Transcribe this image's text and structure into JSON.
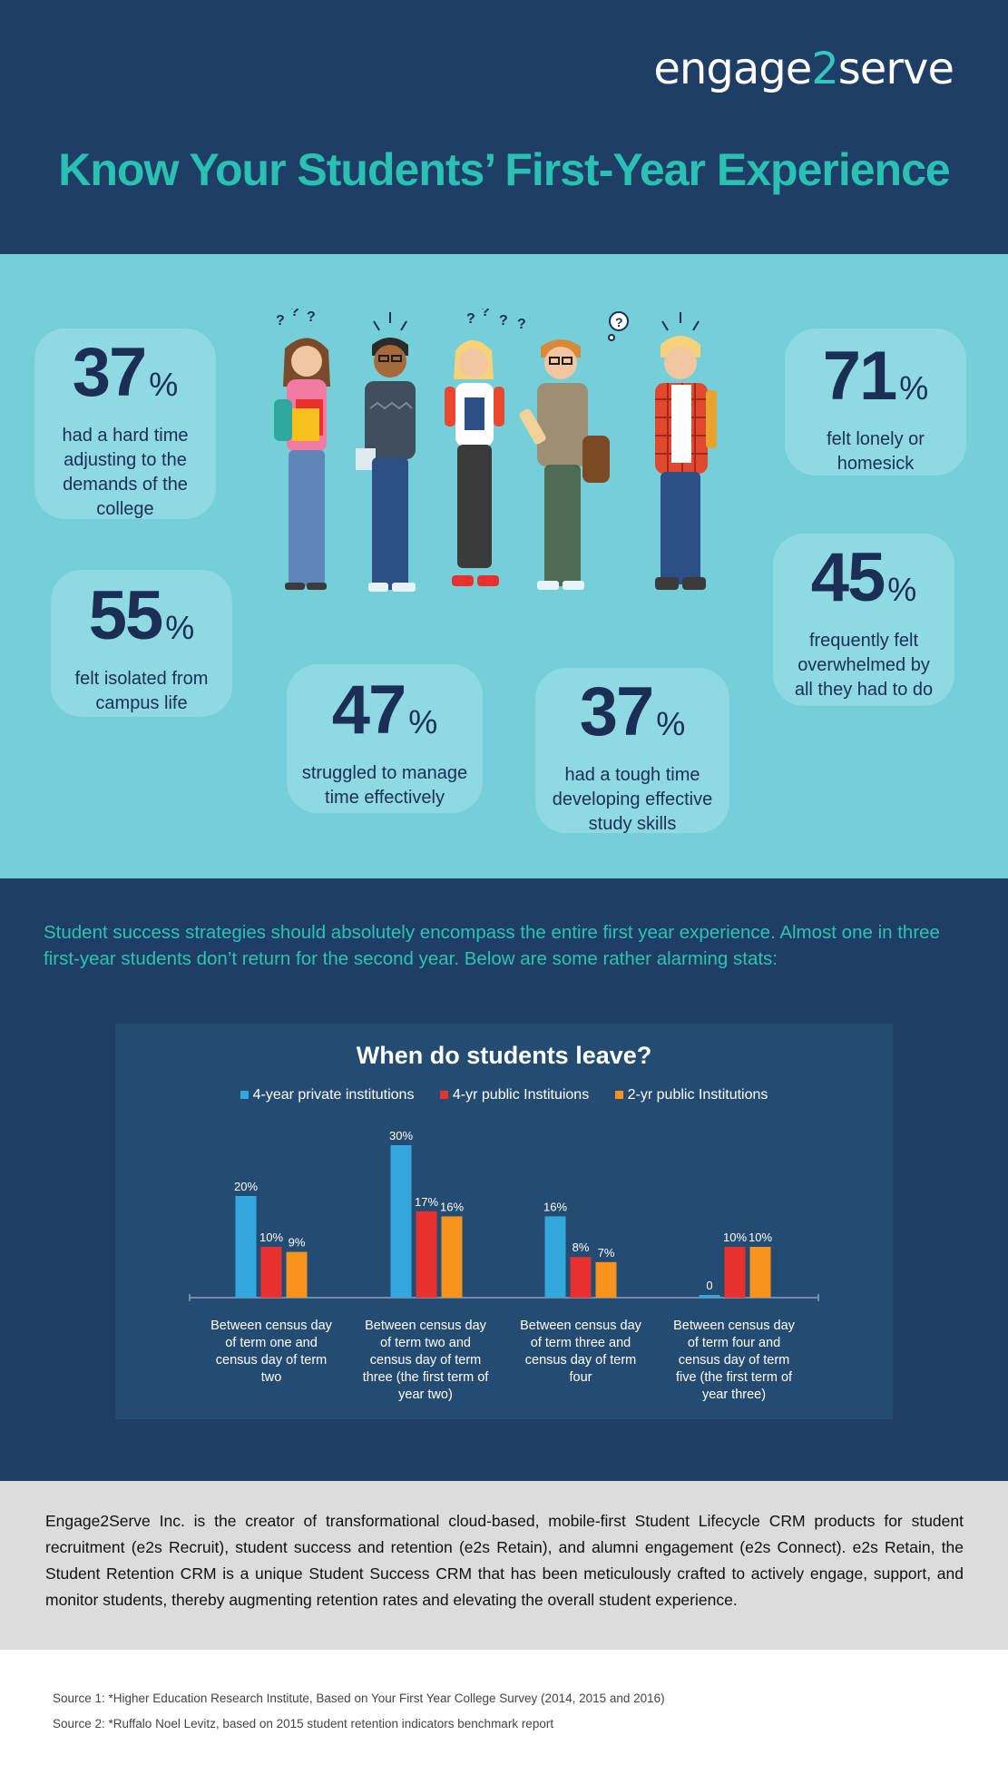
{
  "header": {
    "logo_part1": "engage",
    "logo_part2": "2",
    "logo_part3": "serve",
    "title": "Know Your Students’ First-Year Experience"
  },
  "stats": [
    {
      "value": "37",
      "pct": "%",
      "desc": [
        "had a hard time",
        "adjusting to the",
        "demands of the",
        "college"
      ]
    },
    {
      "value": "71",
      "pct": "%",
      "desc": [
        "felt lonely or",
        "homesick"
      ]
    },
    {
      "value": "55",
      "pct": "%",
      "desc": [
        "felt isolated from",
        "campus life"
      ]
    },
    {
      "value": "45",
      "pct": "%",
      "desc": [
        "frequently felt",
        "overwhelmed by",
        "all they had to do"
      ]
    },
    {
      "value": "47",
      "pct": "%",
      "desc": [
        "struggled to manage",
        "time effectively"
      ]
    },
    {
      "value": "37",
      "pct": "%",
      "desc": [
        "had a tough time",
        "developing effective",
        "study skills"
      ]
    }
  ],
  "intro": "Student success strategies should absolutely encompass the entire first year experience. Almost one in three first-year students don’t return for the second year. Below are some rather alarming stats:",
  "colors": {
    "navy": "#1e3e66",
    "teal": "#2ac0b4",
    "light_teal": "#74cfd9",
    "series_blue": "#34a7df",
    "series_red": "#e8302e",
    "series_orange": "#f7931e"
  },
  "chart_data": {
    "type": "bar",
    "title": "When do students leave?",
    "categories": [
      [
        "Between census day",
        "of term one and",
        "census day of term",
        "two"
      ],
      [
        "Between census day",
        "of term two and",
        "census day of term",
        "three (the first term of",
        "year two)"
      ],
      [
        "Between census day",
        "of term three and",
        "census day of term",
        "four"
      ],
      [
        "Between census day",
        "of term four and",
        "census day of term",
        "five (the first term of",
        "year three)"
      ]
    ],
    "series": [
      {
        "name": "4-year private institutions",
        "color": "#34a7df",
        "values": [
          20,
          30,
          16,
          0
        ],
        "labels": [
          "20%",
          "30%",
          "16%",
          "0"
        ]
      },
      {
        "name": "4-yr public Instituions",
        "color": "#e8302e",
        "values": [
          10,
          17,
          8,
          10
        ],
        "labels": [
          "10%",
          "17%",
          "8%",
          "10%"
        ]
      },
      {
        "name": "2-yr public Institutions",
        "color": "#f7931e",
        "values": [
          9,
          16,
          7,
          10
        ],
        "labels": [
          "9%",
          "16%",
          "7%",
          "10%"
        ]
      }
    ],
    "ylim": [
      0,
      30
    ],
    "legend_position": "top",
    "grid": false
  },
  "about": "Engage2Serve Inc. is the creator of transformational cloud-based, mobile-first Student Lifecycle CRM products for student recruitment (e2s Recruit), student success and retention (e2s Retain), and alumni engagement (e2s Connect). e2s Retain, the Student Retention CRM is a unique Student Success CRM that has been meticulously crafted to actively engage, support, and monitor students, thereby augmenting retention rates and elevating the overall student experience.",
  "sources": [
    "Source 1: *Higher Education Research Institute, Based on Your First Year College Survey (2014, 2015 and 2016)",
    "Source 2: *Ruffalo Noel Levitz, based on 2015 student retention indicators benchmark report"
  ]
}
